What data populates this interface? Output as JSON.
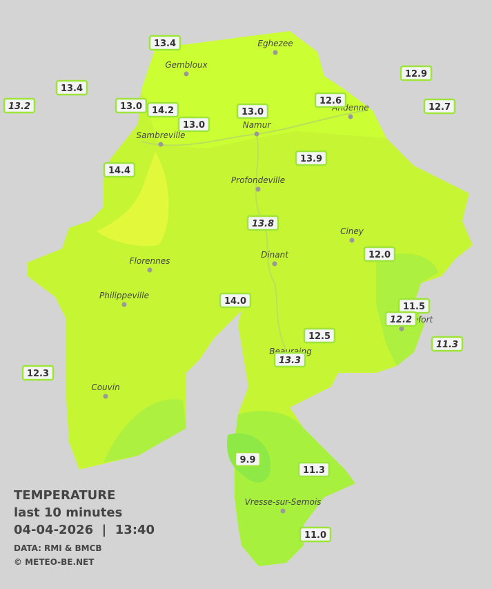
{
  "legend": {
    "title": "TEMPERATURE",
    "subtitle": "last 10 minutes",
    "timestamp": "04-04-2026  |  13:40",
    "source": "DATA: RMI & BMCB",
    "copyright": "© METEO-BE.NET"
  },
  "cities": [
    "Eghezee",
    "Gembloux",
    "Andenne",
    "Sambreville",
    "Namur",
    "Profondeville",
    "Ciney",
    "Dinant",
    "Florennes",
    "Philippeville",
    "Rochefort",
    "Beauraing",
    "Couvin",
    "Vresse-sur-Semois"
  ],
  "stations": [
    {
      "label": "13.4",
      "style": "normal"
    },
    {
      "label": "13.4",
      "style": "normal"
    },
    {
      "label": "13.2",
      "style": "italic"
    },
    {
      "label": "13.0",
      "style": "normal"
    },
    {
      "label": "14.2",
      "style": "normal"
    },
    {
      "label": "13.0",
      "style": "normal"
    },
    {
      "label": "13.0",
      "style": "normal"
    },
    {
      "label": "12.6",
      "style": "normal"
    },
    {
      "label": "12.9",
      "style": "normal"
    },
    {
      "label": "12.7",
      "style": "normal"
    },
    {
      "label": "13.9",
      "style": "normal"
    },
    {
      "label": "14.4",
      "style": "normal"
    },
    {
      "label": "13.8",
      "style": "italic"
    },
    {
      "label": "12.0",
      "style": "normal"
    },
    {
      "label": "14.0",
      "style": "normal"
    },
    {
      "label": "11.5",
      "style": "normal"
    },
    {
      "label": "12.2",
      "style": "italic"
    },
    {
      "label": "12.5",
      "style": "normal"
    },
    {
      "label": "11.3",
      "style": "italic"
    },
    {
      "label": "13.3",
      "style": "italic"
    },
    {
      "label": "12.3",
      "style": "normal"
    },
    {
      "label": "9.9",
      "style": "normal"
    },
    {
      "label": "11.3",
      "style": "normal"
    },
    {
      "label": "11.0",
      "style": "normal"
    }
  ]
}
